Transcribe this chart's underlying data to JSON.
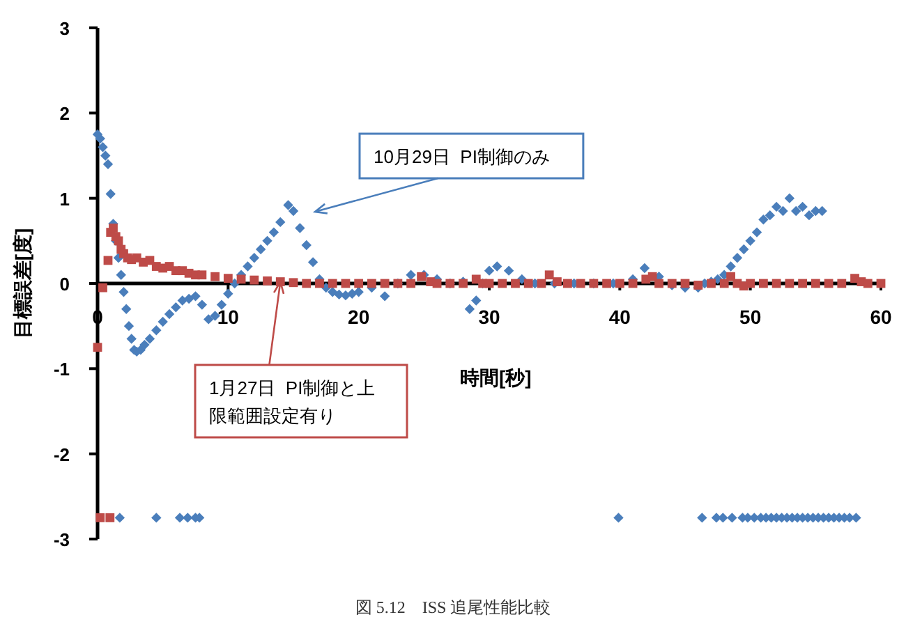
{
  "chart_data": {
    "type": "scatter",
    "ylabel": "目標誤差[度]",
    "xlabel": "時間[秒]",
    "xlim": [
      0,
      60
    ],
    "xticks": [
      0,
      10,
      20,
      30,
      40,
      50,
      60
    ],
    "ylim": [
      -3,
      3
    ],
    "yticks": [
      -3,
      -2,
      -1,
      0,
      1,
      2,
      3
    ],
    "grid": false,
    "series": [
      {
        "color": "#4a7ebb",
        "marker": "diamond",
        "x": [
          0,
          0.2,
          0.4,
          0.6,
          0.8,
          1.0,
          1.2,
          1.4,
          1.6,
          1.8,
          2.0,
          2.2,
          2.4,
          2.6,
          2.8,
          3.0,
          3.3,
          3.6,
          4.0,
          4.5,
          5,
          5.5,
          6,
          6.5,
          7,
          7.5,
          8,
          8.5,
          9,
          9.5,
          10,
          10.5,
          11,
          11.5,
          12,
          12.5,
          13,
          13.5,
          14,
          14.6,
          15,
          15.5,
          16,
          16.5,
          17,
          17.5,
          18,
          18.5,
          19,
          19.5,
          20,
          21,
          22,
          23,
          24,
          25,
          26,
          27,
          28,
          28.5,
          29,
          29.5,
          30,
          30.6,
          31.5,
          32.5,
          33.5,
          35,
          36.5,
          38,
          39.5,
          41,
          41.9,
          43,
          44,
          45,
          46,
          46.5,
          47,
          47.5,
          48,
          48.5,
          49,
          49.5,
          50,
          50.5,
          51,
          51.5,
          52,
          52.5,
          53,
          53.5,
          54,
          54.5,
          55,
          55.5,
          1.7,
          4.5,
          6.3,
          6.9,
          7.5,
          7.8,
          39.9,
          46.3,
          47.4,
          47.9,
          48.6,
          49.4,
          49.8,
          50.3,
          50.8,
          51.2,
          51.6,
          52.0,
          52.4,
          52.8,
          53.2,
          53.6,
          54.0,
          54.4,
          54.8,
          55.2,
          55.6,
          56.0,
          56.4,
          56.8,
          57.2,
          57.6,
          58.1
        ],
        "values": [
          1.75,
          1.7,
          1.6,
          1.5,
          1.4,
          1.05,
          0.7,
          0.5,
          0.3,
          0.1,
          -0.1,
          -0.3,
          -0.5,
          -0.65,
          -0.78,
          -0.8,
          -0.78,
          -0.72,
          -0.65,
          -0.55,
          -0.45,
          -0.36,
          -0.28,
          -0.2,
          -0.18,
          -0.15,
          -0.25,
          -0.42,
          -0.38,
          -0.25,
          -0.12,
          0.0,
          0.1,
          0.2,
          0.3,
          0.4,
          0.5,
          0.6,
          0.72,
          0.92,
          0.85,
          0.65,
          0.45,
          0.25,
          0.05,
          -0.05,
          -0.1,
          -0.13,
          -0.14,
          -0.12,
          -0.1,
          -0.05,
          -0.15,
          0.0,
          0.1,
          0.1,
          0.05,
          0.0,
          0.02,
          -0.3,
          -0.2,
          0.0,
          0.15,
          0.2,
          0.15,
          0.05,
          0.0,
          0.0,
          0.0,
          0.0,
          0.0,
          0.05,
          0.18,
          0.08,
          -0.02,
          -0.05,
          -0.05,
          0.0,
          0.02,
          0.05,
          0.1,
          0.2,
          0.3,
          0.4,
          0.5,
          0.6,
          0.75,
          0.8,
          0.9,
          0.85,
          1.0,
          0.85,
          0.9,
          0.8,
          0.85,
          0.85,
          -2.75,
          -2.75,
          -2.75,
          -2.75,
          -2.75,
          -2.75,
          -2.75,
          -2.75,
          -2.75,
          -2.75,
          -2.75,
          -2.75,
          -2.75,
          -2.75,
          -2.75,
          -2.75,
          -2.75,
          -2.75,
          -2.75,
          -2.75,
          -2.75,
          -2.75,
          -2.75,
          -2.75,
          -2.75,
          -2.75,
          -2.75,
          -2.75,
          -2.75,
          -2.75,
          -2.75,
          -2.75,
          -2.75
        ]
      },
      {
        "color": "#be4b48",
        "marker": "square",
        "x": [
          0,
          0.4,
          0.8,
          1.0,
          1.2,
          1.4,
          1.6,
          1.8,
          2.0,
          2.3,
          2.6,
          3,
          3.5,
          4,
          4.5,
          5,
          5.5,
          6,
          6.5,
          7,
          7.5,
          8,
          9,
          10,
          11,
          12,
          13,
          14,
          15,
          16,
          17,
          18,
          19,
          20,
          21,
          22,
          23,
          24,
          24.8,
          25.5,
          26,
          27,
          28,
          29,
          29.5,
          30,
          31,
          32,
          33,
          34,
          34.6,
          35.2,
          36,
          37,
          38,
          39,
          40,
          41,
          42,
          42.5,
          43,
          44,
          45,
          46,
          47,
          48,
          48.5,
          49,
          49.5,
          50,
          51,
          52,
          53,
          54,
          55,
          56,
          57,
          58,
          58.5,
          59,
          60,
          0.2,
          0.95
        ],
        "values": [
          -0.75,
          -0.05,
          0.27,
          0.6,
          0.65,
          0.55,
          0.5,
          0.4,
          0.35,
          0.3,
          0.28,
          0.3,
          0.25,
          0.27,
          0.2,
          0.18,
          0.2,
          0.15,
          0.15,
          0.12,
          0.1,
          0.1,
          0.08,
          0.06,
          0.05,
          0.04,
          0.03,
          0.02,
          0.01,
          0.0,
          0,
          0,
          0,
          0,
          0,
          0,
          0,
          0,
          0.08,
          0.02,
          0,
          0,
          0,
          0.05,
          0,
          0,
          0,
          0,
          0,
          0,
          0.1,
          0.02,
          0,
          0,
          0,
          0,
          0,
          0,
          0.05,
          0.08,
          0,
          0,
          0,
          -0.02,
          0,
          0,
          0.08,
          0,
          -0.03,
          0,
          0,
          0,
          0,
          0,
          0,
          0,
          0,
          0.06,
          0.02,
          0,
          0,
          -2.75,
          -2.75
        ]
      }
    ],
    "annotations": [
      "10月29日  PI制御のみ",
      {
        "text": "1月27日  PI制御と上限範囲設定有り",
        "x": 14,
        "y": 0.02
      },
      "図 5.12　ISS 追尾性能比較"
    ]
  }
}
